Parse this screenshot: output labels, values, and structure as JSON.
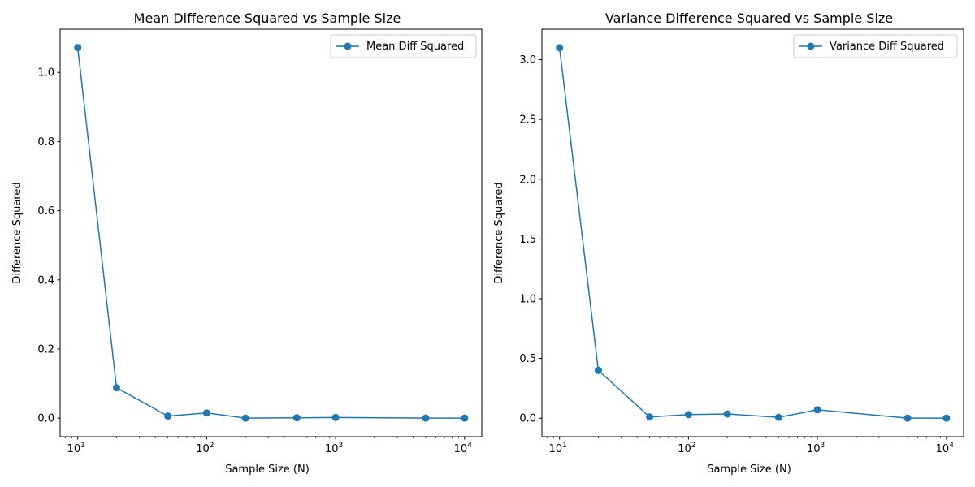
{
  "chart_data": [
    {
      "type": "line",
      "title": "Mean Difference Squared vs Sample Size",
      "xlabel": "Sample Size (N)",
      "ylabel": "Difference Squared",
      "xscale": "log",
      "xlim": [
        7.3,
        13600
      ],
      "ylim": [
        -0.0536,
        1.125
      ],
      "xticks": [
        10,
        100,
        1000,
        10000
      ],
      "xtick_labels": [
        {
          "base": "10",
          "exp": "1"
        },
        {
          "base": "10",
          "exp": "2"
        },
        {
          "base": "10",
          "exp": "3"
        },
        {
          "base": "10",
          "exp": "4"
        }
      ],
      "yticks": [
        0.0,
        0.2,
        0.4,
        0.6,
        0.8,
        1.0
      ],
      "ytick_labels": [
        "0.0",
        "0.2",
        "0.4",
        "0.6",
        "0.8",
        "1.0"
      ],
      "grid": false,
      "legend_position": "top-right",
      "color": "#1f77b4",
      "series": [
        {
          "name": "Mean Diff Squared",
          "x": [
            10,
            20,
            50,
            100,
            200,
            500,
            1000,
            5000,
            10000
          ],
          "y": [
            1.072,
            0.088,
            0.006,
            0.015,
            0.0,
            0.001,
            0.002,
            0.0,
            0.0
          ]
        }
      ]
    },
    {
      "type": "line",
      "title": "Variance Difference Squared vs Sample Size",
      "xlabel": "Sample Size (N)",
      "ylabel": "Difference Squared",
      "xscale": "log",
      "xlim": [
        7.3,
        13600
      ],
      "ylim": [
        -0.155,
        3.255
      ],
      "xticks": [
        10,
        100,
        1000,
        10000
      ],
      "xtick_labels": [
        {
          "base": "10",
          "exp": "1"
        },
        {
          "base": "10",
          "exp": "2"
        },
        {
          "base": "10",
          "exp": "3"
        },
        {
          "base": "10",
          "exp": "4"
        }
      ],
      "yticks": [
        0.0,
        0.5,
        1.0,
        1.5,
        2.0,
        2.5,
        3.0
      ],
      "ytick_labels": [
        "0.0",
        "0.5",
        "1.0",
        "1.5",
        "2.0",
        "2.5",
        "3.0"
      ],
      "grid": false,
      "legend_position": "top-right",
      "color": "#1f77b4",
      "series": [
        {
          "name": "Variance Diff Squared",
          "x": [
            10,
            20,
            50,
            100,
            200,
            500,
            1000,
            5000,
            10000
          ],
          "y": [
            3.1,
            0.4,
            0.01,
            0.03,
            0.035,
            0.007,
            0.07,
            0.0,
            0.0
          ]
        }
      ]
    }
  ]
}
